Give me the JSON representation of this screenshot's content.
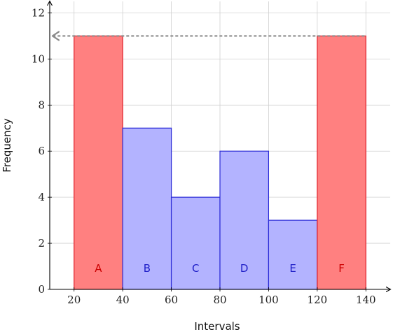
{
  "chart_data": {
    "type": "bar",
    "title": "",
    "xlabel": "Intervals",
    "ylabel": "Frequency",
    "xlim": [
      10,
      150
    ],
    "ylim": [
      0,
      12.5
    ],
    "x_ticks": [
      20,
      40,
      60,
      80,
      100,
      120,
      140
    ],
    "y_ticks": [
      0,
      2,
      4,
      6,
      8,
      10,
      12
    ],
    "grid": true,
    "legend": "none",
    "bars": [
      {
        "label": "A",
        "start": 20,
        "end": 40,
        "value": 11,
        "color": "red"
      },
      {
        "label": "B",
        "start": 40,
        "end": 60,
        "value": 7,
        "color": "blue"
      },
      {
        "label": "C",
        "start": 60,
        "end": 80,
        "value": 4,
        "color": "blue"
      },
      {
        "label": "D",
        "start": 80,
        "end": 100,
        "value": 6,
        "color": "blue"
      },
      {
        "label": "E",
        "start": 100,
        "end": 120,
        "value": 3,
        "color": "blue"
      },
      {
        "label": "F",
        "start": 120,
        "end": 140,
        "value": 11,
        "color": "red"
      }
    ],
    "reference_line": {
      "y": 11,
      "from_x": 140,
      "to_x": 10,
      "style": "dashed-arrow"
    },
    "colors": {
      "red_fill": "#ff8080",
      "red_stroke": "#e0202a",
      "red_text": "#cc0000",
      "blue_fill": "#b3b3ff",
      "blue_stroke": "#2a2ad6",
      "blue_text": "#2020c8",
      "grid": "#d0d0d0",
      "reference_line": "#8c8c8c"
    }
  }
}
